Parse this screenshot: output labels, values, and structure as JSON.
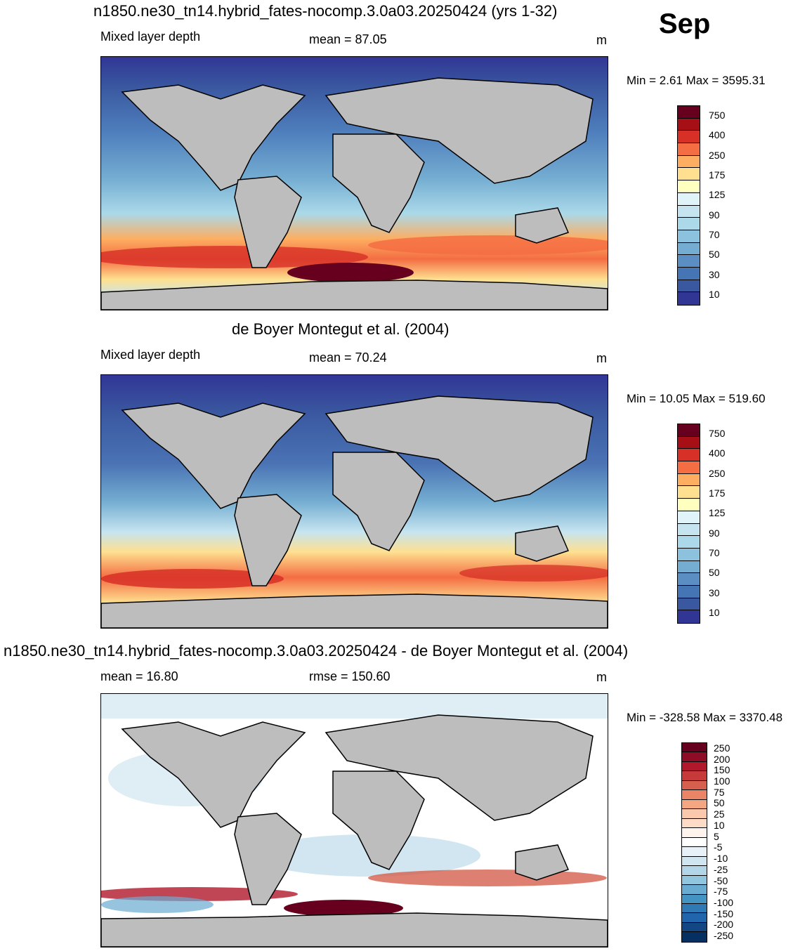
{
  "month": "Sep",
  "panel1": {
    "title": "n1850.ne30_tn14.hybrid_fates-nocomp.3.0a03.20250424 (yrs 1-32)",
    "left": "Mixed layer depth",
    "center": "mean =  87.05",
    "units": "m",
    "minmax": "Min =   2.61 Max = 3595.31"
  },
  "panel2": {
    "title": "de Boyer Montegut et al. (2004)",
    "left": "Mixed layer depth",
    "center": "mean =  70.24",
    "units": "m",
    "minmax": "Min =  10.05 Max = 519.60"
  },
  "panel3": {
    "title": "n1850.ne30_tn14.hybrid_fates-nocomp.3.0a03.20250424 - de Boyer Montegut et al. (2004)",
    "left": "mean =  16.80",
    "center": "rmse = 150.60",
    "units": "m",
    "minmax": "Min = -328.58 Max = 3370.48"
  },
  "colorbar_main": {
    "labels": [
      "750",
      "400",
      "250",
      "175",
      "125",
      "90",
      "70",
      "50",
      "30",
      "10"
    ],
    "colors": [
      "#67001f",
      "#a50f15",
      "#d73027",
      "#f46d43",
      "#fdae61",
      "#fee090",
      "#ffffbf",
      "#e0f3f8",
      "#c6e4f0",
      "#abd9e9",
      "#8cc2dd",
      "#74add1",
      "#5b8fc4",
      "#4575b4",
      "#3a58a0",
      "#313695"
    ]
  },
  "colorbar_diff": {
    "labels": [
      "250",
      "200",
      "150",
      "100",
      "75",
      "50",
      "25",
      "10",
      "5",
      "-5",
      "-10",
      "-25",
      "-50",
      "-75",
      "-100",
      "-150",
      "-200",
      "-250"
    ],
    "colors": [
      "#67001f",
      "#8e0c25",
      "#b2182b",
      "#c63a3a",
      "#d6604d",
      "#e98467",
      "#f4a582",
      "#f9c8ad",
      "#fddbc7",
      "#fff3ed",
      "#ffffff",
      "#e8f1f7",
      "#d1e5f0",
      "#b3d5e8",
      "#92c5de",
      "#6aabd1",
      "#4393c3",
      "#2f79b5",
      "#2166ac",
      "#124784",
      "#053061"
    ]
  },
  "map_fills": {
    "land": "#bdbdbd",
    "panel1_ocean": "#4f7fbd",
    "panel2_ocean": "#4a73b4",
    "panel3_ocean": "#ffffff"
  }
}
